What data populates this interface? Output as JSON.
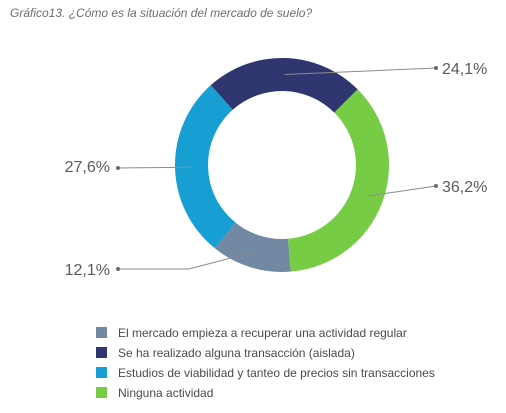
{
  "chart_data": {
    "type": "pie",
    "title": "Gráfico13.  ¿Cómo es la situación del mercado de suelo?",
    "variant": "donut",
    "slices": [
      {
        "label": "El mercado empieza a recuperar una actividad regular",
        "value": 12.1,
        "value_label": "12,1%",
        "color": "#7189a3"
      },
      {
        "label": "Se ha realizado alguna transacción (aislada)",
        "value": 24.1,
        "value_label": "24,1%",
        "color": "#2f356f"
      },
      {
        "label": "Estudios de viabilidad y tanteo de precios sin transacciones",
        "value": 27.6,
        "value_label": "27,6%",
        "color": "#179fd4"
      },
      {
        "label": "Ninguna actividad",
        "value": 36.2,
        "value_label": "36,2%",
        "color": "#76cd45"
      }
    ],
    "legend_position": "bottom"
  }
}
